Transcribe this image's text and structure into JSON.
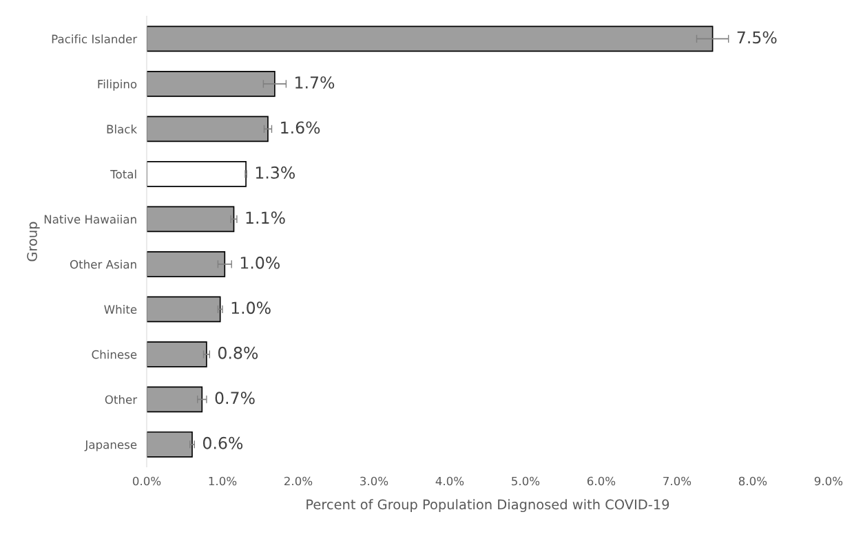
{
  "chart_data": {
    "type": "bar",
    "orientation": "horizontal",
    "xlabel": "Percent of Group Population Diagnosed with COVID-19",
    "ylabel": "Group",
    "categories": [
      "Pacific Islander",
      "Filipino",
      "Black",
      "Total",
      "Native Hawaiian",
      "Other Asian",
      "White",
      "Chinese",
      "Other",
      "Japanese"
    ],
    "values": [
      7.47,
      1.69,
      1.6,
      1.31,
      1.15,
      1.03,
      0.97,
      0.79,
      0.73,
      0.6
    ],
    "errors": [
      0.21,
      0.15,
      0.05,
      0.01,
      0.04,
      0.09,
      0.03,
      0.04,
      0.06,
      0.03
    ],
    "value_labels": [
      "7.5%",
      "1.7%",
      "1.6%",
      "1.3%",
      "1.1%",
      "1.0%",
      "1.0%",
      "0.8%",
      "0.7%",
      "0.6%"
    ],
    "colors": [
      "#9e9e9e",
      "#9e9e9e",
      "#9e9e9e",
      "#ffffff",
      "#9e9e9e",
      "#9e9e9e",
      "#9e9e9e",
      "#9e9e9e",
      "#9e9e9e",
      "#9e9e9e"
    ],
    "xlim": [
      0,
      9
    ],
    "xticks": [
      {
        "value": 0,
        "label": "0.0%"
      },
      {
        "value": 1,
        "label": "1.0%"
      },
      {
        "value": 2,
        "label": "2.0%"
      },
      {
        "value": 3,
        "label": "3.0%"
      },
      {
        "value": 4,
        "label": "4.0%"
      },
      {
        "value": 5,
        "label": "5.0%"
      },
      {
        "value": 6,
        "label": "6.0%"
      },
      {
        "value": 7,
        "label": "7.0%"
      },
      {
        "value": 8,
        "label": "8.0%"
      },
      {
        "value": 9,
        "label": "9.0%"
      }
    ],
    "grid": false
  }
}
